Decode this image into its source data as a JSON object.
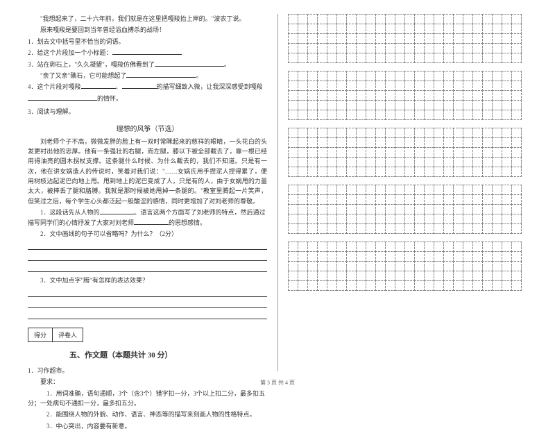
{
  "leftColumn": {
    "quotes": [
      "\"我想起来了，二十六年前，我们就是在这里把嘎羧抬上岸的。\"波农丁说。",
      "原来嘎羧是要回到当年曾经浴血搏杀的战场！"
    ],
    "questions1": [
      "1．划去文中括号里不恰当的词语。",
      "2．给这个片段加一个小标题：",
      "3．站在卵石上，\"久久凝望\"，嘎羧仿佛看到了",
      "\"亲了又亲\"礁石，它可能想起了",
      "4．这个片段对嘎羧"
    ],
    "blanks1": {
      "end3": "。",
      "end4": "。",
      "q4_mid1": "、",
      "q4_mid2": "的描写细致入微，让我深深感受到嘎羧",
      "q4_end": "的情怀。"
    },
    "reading3": {
      "title": "3．阅读与理解。",
      "subtitle": "理想的风筝（节选）",
      "paragraphs": [
        "刘老师个子不高，微微发胖的脸上有一双时常眯起来的慈祥的眼睛，一头花白的头发更衬出他的忠厚。他有一条强壮的右腿，而左腿，膝以下被全部截去了，靠一根已经用得油亮的圆木拐杖支撑。这条腿什么时候、为什么截去的，我们不知道。只是有一次，他在讲女娲造人的传说时，笑着对我们说：\"……女娲氏用手捏泥人捏得累了，便用树枝沾起泥巴向地上甩。甩到地上的泥巴变成了人，只是有的人，由于女娲甩的力量太大，被摔丢了腿和胳膊。我就是那时候被她甩掉一条腿的。\"教室里腾起一片笑声，但笑过之后，每个学生心头都泛起一股酸涩的感情，同时更增加了对刘老师的尊敬。"
      ],
      "q1_pre": "1．这段话先从人物的",
      "q1_mid": "、",
      "q1_after": "语言这两个方面写了刘老师的特点，然后通过描写同学们的心情抒发了大家对刘老师",
      "q1_end": "的思想感情。",
      "q2": "2．文中画线的句子可以省略吗？为什么？（2分）",
      "q3": "3．文中加点字\"腾\"有怎样的表达效果？"
    },
    "scoreLabels": {
      "score": "得分",
      "reviewer": "评卷人"
    },
    "section5": {
      "header": "五、作文题（本题共计 30 分）",
      "q1": "1．习作超市。",
      "req": "要求：",
      "items": [
        "1．用词准确，语句通顺，3个（含3个）错字扣一分，3个以上扣二分，最多扣五分；一处病句不通扣一分，最多扣五分。",
        "2．能围绕人物的外貌、动作、语言、神态等的描写来刻画人物的性格特点。",
        "3．中心突出，内容要有新意。"
      ]
    }
  },
  "grid": {
    "blocks": 5,
    "rows": 5,
    "cols": 24
  },
  "footer": "第 3 页 共 4 页"
}
